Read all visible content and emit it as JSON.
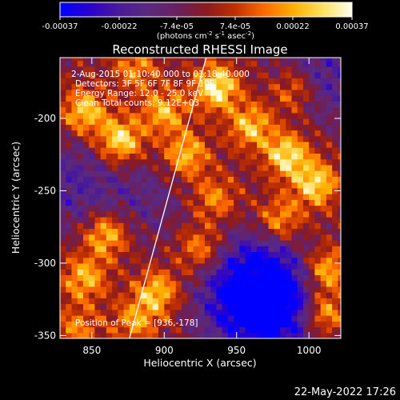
{
  "colors": {
    "background": "#000000",
    "foreground": "#ffffff",
    "colormap": [
      "#0000ff",
      "#2a00d0",
      "#4a1a9a",
      "#5a2a80",
      "#6a2060",
      "#8a1a20",
      "#c03000",
      "#ff6a00",
      "#ffb000",
      "#ffe060",
      "#fffff0"
    ]
  },
  "colorbar": {
    "ticks": [
      "-0.00037",
      "-0.00022",
      "-7.4e-05",
      "7.4e-05",
      "0.00022",
      "0.00037"
    ],
    "tick_values": [
      -0.00037,
      -0.00022,
      -7.4e-05,
      7.4e-05,
      0.00022,
      0.00037
    ],
    "range": [
      -0.00037,
      0.00037
    ],
    "units_pre": "(photons cm",
    "units_sup1": "-2",
    "units_mid": " s",
    "units_sup2": "-1",
    "units_post": " asec",
    "units_sup3": "-2",
    "units_end": ")"
  },
  "chart_data": {
    "type": "heatmap",
    "title": "Reconstructed RHESSI Image",
    "xlabel": "Heliocentric X (arcsec)",
    "ylabel": "Heliocentric Y (arcsec)",
    "xlim": [
      828,
      1022
    ],
    "ylim": [
      -352,
      -158
    ],
    "x_ticks": [
      "850",
      "900",
      "950",
      "1000"
    ],
    "x_tick_values": [
      850,
      900,
      950,
      1000
    ],
    "y_ticks": [
      "-200",
      "-250",
      "-300",
      "-350"
    ],
    "y_tick_values": [
      -200,
      -250,
      -300,
      -350
    ],
    "annotations": [
      "2-Aug-2015 01:10:40.000 to 01:18:40.000",
      "Detectors: 3F 5F 6F 7F 8F 9F 10F",
      "Energy Range: 12.0 - 25.0 keV",
      "Clean    Total counts: 9.12E+03"
    ],
    "peak_label": "Position of Peak = [936,-178]",
    "peak": [
      936,
      -178
    ],
    "limb_line": [
      [
        876,
        -352
      ],
      [
        929,
        -158
      ]
    ],
    "hot_spots": [
      {
        "x": 936,
        "y": -178,
        "level": 1.0
      },
      {
        "x": 870,
        "y": -215,
        "level": 0.95
      },
      {
        "x": 845,
        "y": -195,
        "level": 0.8
      },
      {
        "x": 985,
        "y": -225,
        "level": 0.9
      },
      {
        "x": 1005,
        "y": -245,
        "level": 0.85
      },
      {
        "x": 915,
        "y": -225,
        "level": 0.75
      },
      {
        "x": 900,
        "y": -195,
        "level": 0.7
      },
      {
        "x": 960,
        "y": -205,
        "level": 0.75
      },
      {
        "x": 1012,
        "y": -305,
        "level": 0.8
      },
      {
        "x": 1010,
        "y": -335,
        "level": 0.85
      },
      {
        "x": 860,
        "y": -280,
        "level": 0.8
      },
      {
        "x": 845,
        "y": -310,
        "level": 0.7
      },
      {
        "x": 895,
        "y": -320,
        "level": 0.75
      },
      {
        "x": 880,
        "y": -340,
        "level": 0.55
      },
      {
        "x": 925,
        "y": -290,
        "level": 0.6
      },
      {
        "x": 980,
        "y": -270,
        "level": 0.65
      },
      {
        "x": 935,
        "y": -255,
        "level": 0.55
      },
      {
        "x": 840,
        "y": -345,
        "level": 0.5
      },
      {
        "x": 960,
        "y": -320,
        "level": 0.35
      },
      {
        "x": 990,
        "y": -180,
        "level": 0.6
      },
      {
        "x": 880,
        "y": -165,
        "level": 0.55
      }
    ],
    "cold_spots": [
      {
        "x": 965,
        "y": -310,
        "level": -0.85
      },
      {
        "x": 955,
        "y": -330,
        "level": -0.7
      },
      {
        "x": 985,
        "y": -335,
        "level": -0.6
      },
      {
        "x": 835,
        "y": -245,
        "level": -0.45
      },
      {
        "x": 1010,
        "y": -170,
        "level": -0.5
      },
      {
        "x": 885,
        "y": -255,
        "level": -0.3
      }
    ]
  },
  "timestamp": "22-May-2022 17:26"
}
